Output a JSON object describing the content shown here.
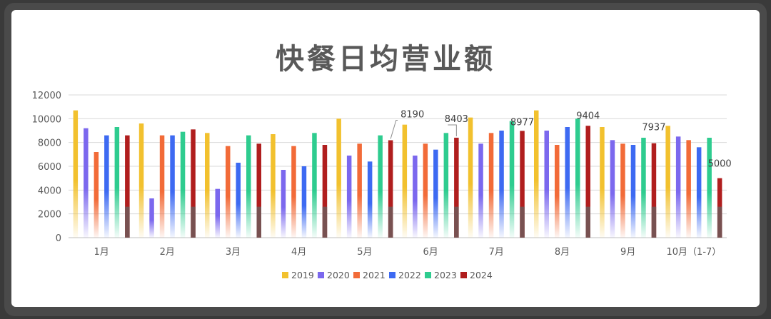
{
  "chart_data": {
    "type": "bar",
    "title": "快餐日均营业额",
    "xlabel": "",
    "ylabel": "",
    "ylim": [
      0,
      12000
    ],
    "yticks": [
      0,
      2000,
      4000,
      6000,
      8000,
      10000,
      12000
    ],
    "grid": true,
    "legend_position": "bottom",
    "categories": [
      "1月",
      "2月",
      "3月",
      "4月",
      "5月",
      "6月",
      "7月",
      "8月",
      "9月",
      "10月（1-7）"
    ],
    "series": [
      {
        "name": "2019",
        "color": "#f2c12e",
        "values": [
          10700,
          9600,
          8800,
          8700,
          10000,
          9500,
          10100,
          10700,
          9300,
          9400
        ]
      },
      {
        "name": "2020",
        "color": "#7b68ee",
        "values": [
          9200,
          3300,
          4100,
          5700,
          6900,
          6900,
          7900,
          9000,
          8200,
          8500
        ]
      },
      {
        "name": "2021",
        "color": "#f26b38",
        "values": [
          7200,
          8600,
          7700,
          7700,
          7900,
          7900,
          8800,
          7800,
          7900,
          8200
        ]
      },
      {
        "name": "2022",
        "color": "#3d6af2",
        "values": [
          8600,
          8600,
          6300,
          6000,
          6400,
          7400,
          9000,
          9300,
          7800,
          7600
        ]
      },
      {
        "name": "2023",
        "color": "#2ecc8f",
        "values": [
          9300,
          8900,
          8600,
          8800,
          8600,
          8800,
          9800,
          10000,
          8400,
          8400
        ]
      },
      {
        "name": "2024",
        "color": "#b01e1e",
        "values": [
          8600,
          9100,
          7900,
          7800,
          8190,
          8403,
          8977,
          9404,
          7937,
          5000
        ]
      }
    ],
    "annotations": [
      {
        "text": "8190",
        "category": "5月",
        "series": "2024",
        "value": 8190
      },
      {
        "text": "8403",
        "category": "6月",
        "series": "2024",
        "value": 8403
      },
      {
        "text": "8977",
        "category": "7月",
        "series": "2024",
        "value": 8977
      },
      {
        "text": "9404",
        "category": "8月",
        "series": "2024",
        "value": 9404
      },
      {
        "text": "7937",
        "category": "9月",
        "series": "2024",
        "value": 7937
      },
      {
        "text": "5000",
        "category": "10月（1-7）",
        "series": "2024",
        "value": 5000
      }
    ]
  }
}
